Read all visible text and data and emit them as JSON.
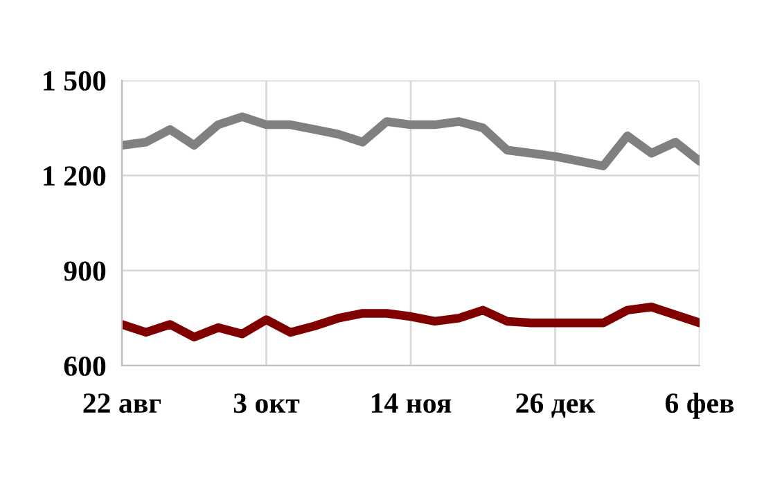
{
  "chart_data": {
    "type": "line",
    "categories": [
      "22 авг",
      null,
      null,
      null,
      null,
      null,
      "3 окт",
      null,
      null,
      null,
      null,
      null,
      "14 ноя",
      null,
      null,
      null,
      null,
      null,
      "26 дек",
      null,
      null,
      null,
      null,
      null,
      "6 фев"
    ],
    "series": [
      {
        "color": "#808080",
        "values": [
          1295,
          1305,
          1345,
          1295,
          1360,
          1385,
          1360,
          1360,
          1345,
          1330,
          1305,
          1370,
          1360,
          1360,
          1370,
          1350,
          1280,
          1270,
          1260,
          1245,
          1230,
          1325,
          1270,
          1305,
          1245
        ]
      },
      {
        "color": "#800000",
        "values": [
          730,
          705,
          730,
          690,
          720,
          700,
          745,
          705,
          725,
          750,
          765,
          765,
          755,
          740,
          750,
          775,
          740,
          735,
          735,
          735,
          735,
          775,
          785,
          760,
          735
        ]
      }
    ],
    "ylim": [
      600,
      1500
    ],
    "yticks": [
      {
        "value": 600,
        "label": "600"
      },
      {
        "value": 900,
        "label": "900"
      },
      {
        "value": 1200,
        "label": "1 200"
      },
      {
        "value": 1500,
        "label": "1 500"
      }
    ],
    "grid": true,
    "marker": "none",
    "line_style": "solid"
  }
}
